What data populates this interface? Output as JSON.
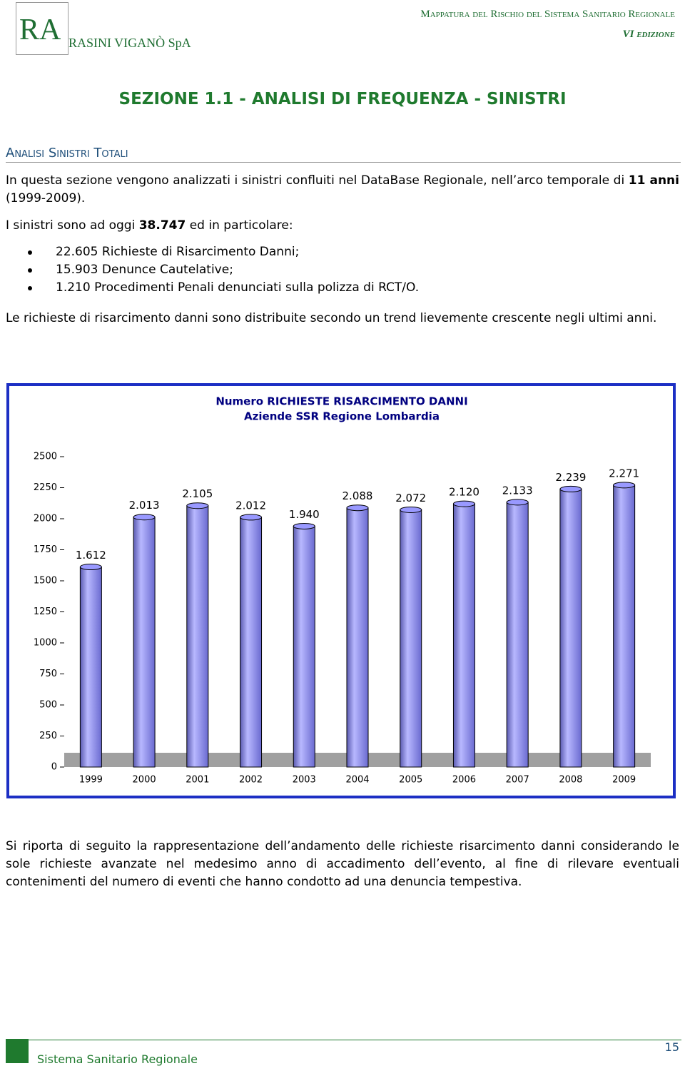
{
  "header": {
    "logo_mark": "RA",
    "logo_text": "RASINI VIGANÒ SpA",
    "title": "Mappatura del Rischio del Sistema Sanitario Regionale",
    "edition": "VI edizione"
  },
  "section_title": "SEZIONE 1.1 - ANALISI DI FREQUENZA - SINISTRI",
  "subsection_title": "Analisi Sinistri Totali",
  "intro": [
    "In questa sezione vengono analizzati i sinistri confluiti nel DataBase Regionale, nell’arco temporale di ",
    "11 anni",
    " (1999-2009)."
  ],
  "total": [
    "I sinistri sono ad oggi ",
    "38.747",
    " ed in particolare:"
  ],
  "bullets": [
    "22.605 Richieste di Risarcimento Danni;",
    "15.903 Denunce Cautelative;",
    "1.210 Procedimenti Penali denunciati sulla polizza di RCT/O."
  ],
  "trend": "Le richieste di risarcimento danni sono distribuite secondo un trend lievemente crescente negli ultimi anni.",
  "chart_data": {
    "type": "bar",
    "title": "Numero RICHIESTE RISARCIMENTO DANNI",
    "subtitle": "Aziende SSR Regione Lombardia",
    "categories": [
      "1999",
      "2000",
      "2001",
      "2002",
      "2003",
      "2004",
      "2005",
      "2006",
      "2007",
      "2008",
      "2009"
    ],
    "values": [
      1612,
      2013,
      2105,
      2012,
      1940,
      2088,
      2072,
      2120,
      2133,
      2239,
      2271
    ],
    "value_labels": [
      "1.612",
      "2.013",
      "2.105",
      "2.012",
      "1.940",
      "2.088",
      "2.072",
      "2.120",
      "2.133",
      "2.239",
      "2.271"
    ],
    "color": "#9999ff",
    "ylim": [
      0,
      2500
    ],
    "yticks": [
      0,
      250,
      500,
      750,
      1000,
      1250,
      1500,
      1750,
      2000,
      2250,
      2500
    ],
    "grid": false
  },
  "closing": "Si riporta di seguito la rappresentazione dell’andamento delle richieste risarcimento danni considerando le sole richieste avanzate nel medesimo anno di accadimento dell’evento, al fine di rilevare eventuali contenimenti del numero di eventi che hanno condotto ad una denuncia tempestiva.",
  "footer": {
    "text": "Sistema Sanitario Regionale",
    "page": "15"
  }
}
